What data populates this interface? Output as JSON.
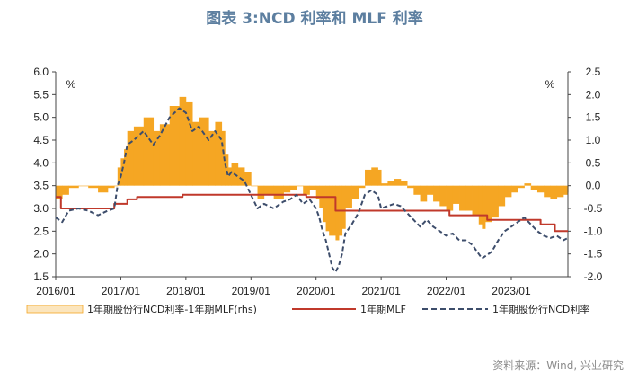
{
  "title": "图表 3:NCD 利率和 MLF 利率",
  "source": "资料来源：Wind, 兴业研究",
  "chart_data": {
    "type": "line",
    "left_unit": "%",
    "right_unit": "%",
    "ylim_left": [
      1.5,
      6.0
    ],
    "ylim_right": [
      -2.0,
      2.5
    ],
    "yticks_left": [
      "6.0",
      "5.5",
      "5.0",
      "4.5",
      "4.0",
      "3.5",
      "3.0",
      "2.5",
      "2.0",
      "1.5"
    ],
    "yticks_right": [
      "2.5",
      "2.0",
      "1.5",
      "1.0",
      "0.5",
      "0.0",
      "-0.5",
      "-1.0",
      "-1.5",
      "-2.0"
    ],
    "xlim": [
      2016.0,
      2023.87
    ],
    "xticks": [
      "2016/01",
      "2017/01",
      "2018/01",
      "2019/01",
      "2020/01",
      "2021/01",
      "2022/01",
      "2023/01"
    ],
    "colors": {
      "spread": "#f5a623",
      "mlf": "#c0392b",
      "ncd": "#3d4d6b"
    },
    "legend": {
      "spread": "1年期股份行NCD利率-1年期MLF(rhs)",
      "mlf": "1年期MLF",
      "ncd": "1年期股份行NCD利率"
    },
    "series": [
      {
        "name": "1年期MLF",
        "axis": "left",
        "x": [
          2016.0,
          2016.08,
          2016.08,
          2016.9,
          2016.9,
          2017.1,
          2017.1,
          2017.25,
          2017.25,
          2017.95,
          2017.95,
          2018.85,
          2018.85,
          2019.85,
          2019.85,
          2020.3,
          2020.3,
          2022.05,
          2022.05,
          2022.63,
          2022.63,
          2023.45,
          2023.45,
          2023.67,
          2023.67,
          2023.87
        ],
        "y": [
          3.25,
          3.25,
          3.0,
          3.0,
          3.1,
          3.1,
          3.2,
          3.2,
          3.25,
          3.25,
          3.3,
          3.3,
          3.3,
          3.3,
          3.25,
          3.25,
          2.95,
          2.95,
          2.85,
          2.85,
          2.75,
          2.75,
          2.65,
          2.65,
          2.5,
          2.5
        ]
      },
      {
        "name": "1年期股份行NCD利率",
        "axis": "left",
        "x": [
          2016.0,
          2016.1,
          2016.2,
          2016.35,
          2016.5,
          2016.65,
          2016.8,
          2016.9,
          2016.95,
          2017.0,
          2017.05,
          2017.1,
          2017.2,
          2017.35,
          2017.5,
          2017.6,
          2017.75,
          2017.9,
          2018.0,
          2018.1,
          2018.2,
          2018.35,
          2018.45,
          2018.55,
          2018.6,
          2018.65,
          2018.7,
          2018.8,
          2018.9,
          2019.0,
          2019.1,
          2019.2,
          2019.35,
          2019.5,
          2019.6,
          2019.7,
          2019.8,
          2019.9,
          2020.0,
          2020.05,
          2020.1,
          2020.15,
          2020.2,
          2020.25,
          2020.3,
          2020.35,
          2020.4,
          2020.45,
          2020.55,
          2020.65,
          2020.75,
          2020.85,
          2020.95,
          2021.0,
          2021.1,
          2021.2,
          2021.3,
          2021.4,
          2021.5,
          2021.6,
          2021.7,
          2021.8,
          2021.9,
          2022.0,
          2022.1,
          2022.2,
          2022.3,
          2022.4,
          2022.5,
          2022.55,
          2022.6,
          2022.7,
          2022.8,
          2022.9,
          2023.0,
          2023.1,
          2023.2,
          2023.3,
          2023.4,
          2023.5,
          2023.6,
          2023.7,
          2023.8,
          2023.87
        ],
        "y": [
          2.8,
          2.7,
          2.95,
          3.0,
          2.95,
          2.85,
          2.95,
          3.0,
          3.5,
          3.7,
          4.0,
          4.4,
          4.5,
          4.7,
          4.4,
          4.6,
          5.0,
          5.2,
          5.1,
          4.7,
          4.8,
          4.5,
          4.7,
          4.5,
          4.0,
          3.7,
          3.8,
          3.7,
          3.6,
          3.3,
          3.0,
          3.1,
          3.0,
          3.15,
          3.2,
          3.3,
          3.1,
          3.2,
          3.0,
          2.8,
          2.5,
          2.3,
          2.0,
          1.7,
          1.6,
          1.75,
          2.0,
          2.45,
          2.65,
          2.9,
          3.3,
          3.4,
          3.3,
          3.0,
          3.05,
          3.1,
          3.05,
          2.9,
          2.75,
          2.6,
          2.75,
          2.6,
          2.5,
          2.4,
          2.45,
          2.3,
          2.3,
          2.2,
          2.0,
          1.9,
          1.95,
          2.05,
          2.3,
          2.5,
          2.6,
          2.7,
          2.8,
          2.65,
          2.5,
          2.4,
          2.35,
          2.4,
          2.3,
          2.35
        ]
      },
      {
        "name": "1年期股份行NCD利率-1年期MLF(rhs)",
        "axis": "right",
        "type": "bar",
        "x": [
          2016.0,
          2016.1,
          2016.2,
          2016.35,
          2016.5,
          2016.65,
          2016.8,
          2016.9,
          2016.95,
          2017.0,
          2017.05,
          2017.1,
          2017.2,
          2017.35,
          2017.5,
          2017.6,
          2017.75,
          2017.9,
          2018.0,
          2018.1,
          2018.2,
          2018.35,
          2018.45,
          2018.55,
          2018.6,
          2018.65,
          2018.7,
          2018.8,
          2018.9,
          2019.0,
          2019.1,
          2019.2,
          2019.35,
          2019.5,
          2019.6,
          2019.7,
          2019.8,
          2019.9,
          2020.0,
          2020.05,
          2020.1,
          2020.15,
          2020.2,
          2020.25,
          2020.3,
          2020.35,
          2020.4,
          2020.45,
          2020.55,
          2020.65,
          2020.75,
          2020.85,
          2020.95,
          2021.0,
          2021.1,
          2021.2,
          2021.3,
          2021.4,
          2021.5,
          2021.6,
          2021.7,
          2021.8,
          2021.9,
          2022.0,
          2022.1,
          2022.2,
          2022.3,
          2022.4,
          2022.5,
          2022.55,
          2022.6,
          2022.7,
          2022.8,
          2022.9,
          2023.0,
          2023.1,
          2023.2,
          2023.3,
          2023.4,
          2023.5,
          2023.6,
          2023.7,
          2023.8,
          2023.87
        ],
        "y": [
          -0.3,
          -0.2,
          -0.05,
          0.0,
          -0.05,
          -0.15,
          -0.05,
          0.0,
          0.4,
          0.6,
          0.8,
          1.2,
          1.3,
          1.5,
          1.2,
          1.35,
          1.75,
          1.95,
          1.85,
          1.4,
          1.5,
          1.2,
          1.4,
          1.2,
          0.7,
          0.4,
          0.5,
          0.4,
          0.3,
          0.0,
          -0.3,
          -0.2,
          -0.3,
          -0.15,
          -0.1,
          0.0,
          -0.2,
          -0.1,
          -0.3,
          -0.5,
          -0.8,
          -1.0,
          -1.1,
          -1.1,
          -1.2,
          -1.1,
          -0.95,
          -0.5,
          -0.3,
          -0.05,
          0.35,
          0.4,
          0.35,
          0.05,
          0.1,
          0.15,
          0.1,
          -0.05,
          -0.2,
          -0.35,
          -0.2,
          -0.35,
          -0.45,
          -0.55,
          -0.4,
          -0.55,
          -0.55,
          -0.65,
          -0.85,
          -0.95,
          -0.8,
          -0.7,
          -0.45,
          -0.25,
          -0.15,
          -0.05,
          0.05,
          -0.1,
          -0.15,
          -0.25,
          -0.3,
          -0.25,
          -0.2,
          -0.15
        ]
      }
    ]
  }
}
